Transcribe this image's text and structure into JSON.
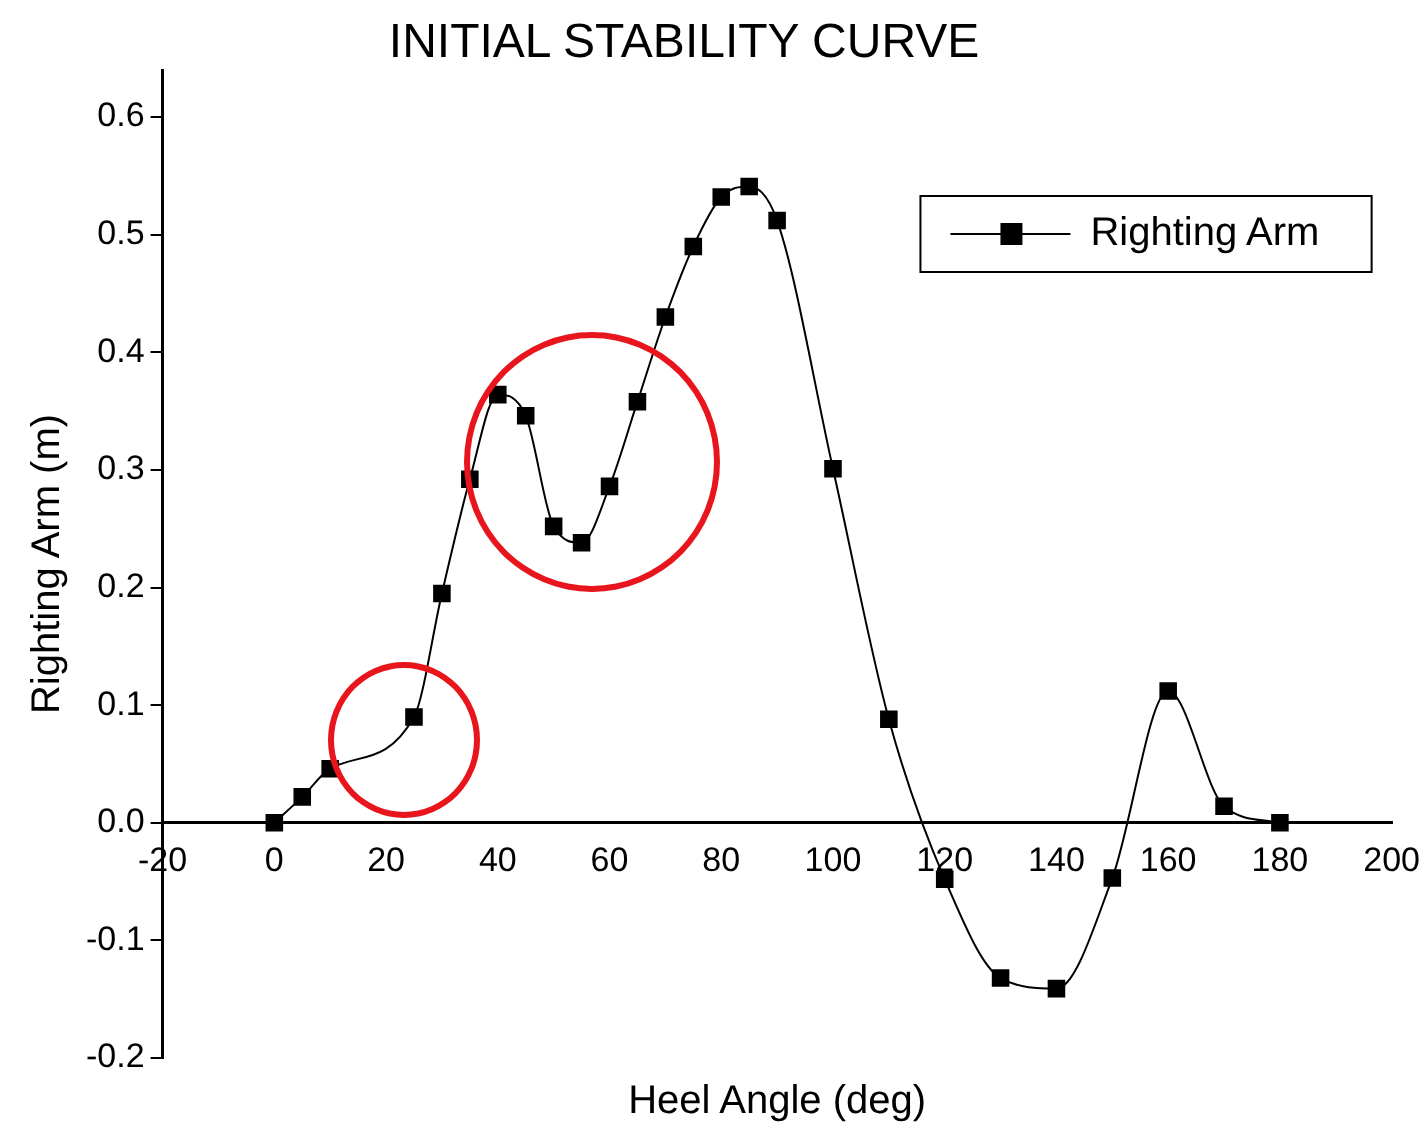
{
  "chart_data": {
    "type": "line",
    "title": "INITIAL STABILITY CURVE",
    "xlabel": "Heel Angle (deg)",
    "ylabel": "Righting Arm (m)",
    "x": [
      0,
      5,
      10,
      25,
      30,
      35,
      40,
      45,
      50,
      55,
      60,
      65,
      70,
      75,
      80,
      85,
      90,
      100,
      110,
      120,
      130,
      140,
      150,
      160,
      170,
      180
    ],
    "series": [
      {
        "name": "Righting Arm",
        "color": "#000000",
        "values": [
          0,
          0.022,
          0.046,
          0.09,
          0.195,
          0.292,
          0.364,
          0.346,
          0.252,
          0.238,
          0.286,
          0.358,
          0.43,
          0.49,
          0.532,
          0.541,
          0.512,
          0.301,
          0.088,
          -0.048,
          -0.132,
          -0.141,
          -0.047,
          0.112,
          0.014,
          0
        ]
      }
    ],
    "xlim": [
      -20,
      200
    ],
    "xticks": [
      -20,
      0,
      20,
      40,
      60,
      80,
      100,
      120,
      140,
      160,
      180,
      200
    ],
    "ylim": [
      -0.2,
      0.64
    ],
    "yticks": [
      -0.2,
      -0.1,
      {
        "value": 0,
        "label": "0.0"
      },
      0.1,
      0.2,
      0.3,
      0.4,
      0.5,
      0.6
    ],
    "grid": false,
    "legend": "top right",
    "marker": "square",
    "line_style": "solid"
  }
}
